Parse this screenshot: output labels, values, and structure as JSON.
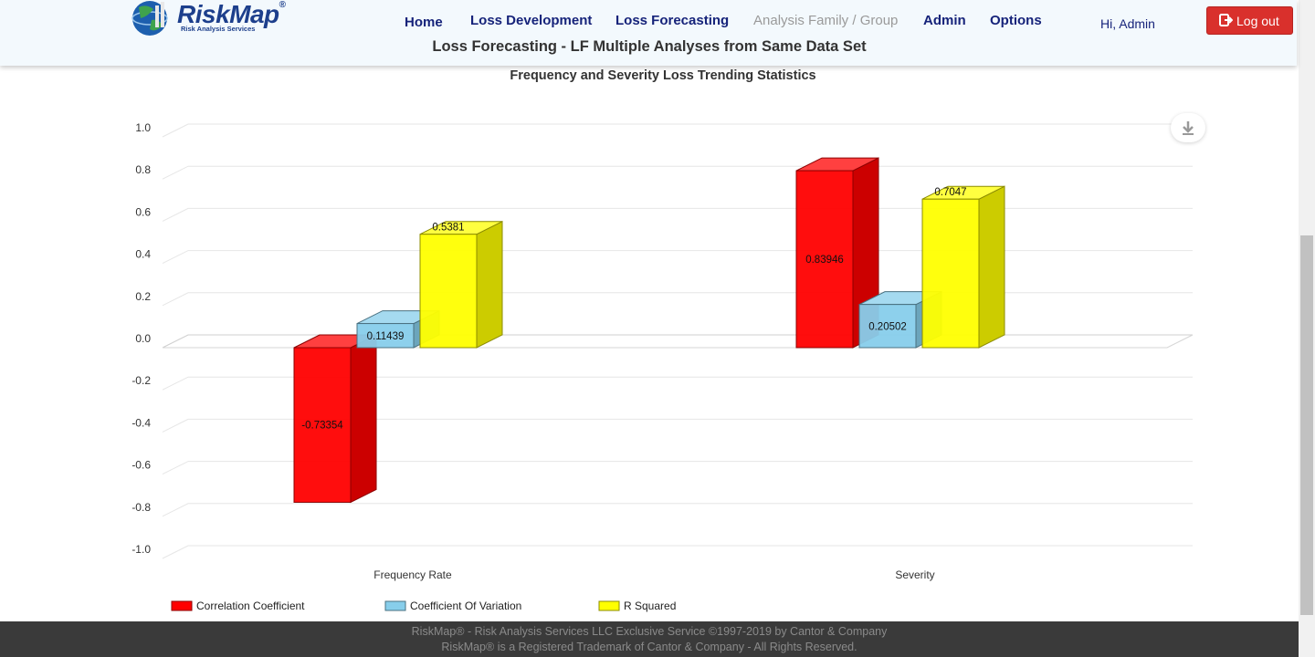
{
  "header": {
    "logo_text": "RiskMap",
    "logo_reg": "®",
    "logo_sub": "Risk Analysis Services",
    "nav": [
      {
        "label": "Home",
        "enabled": true
      },
      {
        "label": "Loss Development",
        "enabled": true
      },
      {
        "label": "Loss Forecasting",
        "enabled": true
      },
      {
        "label": "Analysis Family / Group",
        "enabled": false
      },
      {
        "label": "Admin",
        "enabled": true
      },
      {
        "label": "Options",
        "enabled": true
      }
    ],
    "greeting": "Hi, Admin",
    "logout_label": "Log out",
    "page_title": "Loss Forecasting - LF Multiple Analyses from Same Data Set"
  },
  "colors": {
    "series": [
      "#ff0000",
      "#87ceeb",
      "#ffff00"
    ],
    "logout": "#d9302c",
    "nav": "#16237a"
  },
  "chart_data": {
    "type": "bar",
    "style": "3d-column",
    "title": "Frequency and Severity Loss Trending Statistics",
    "categories": [
      "Frequency Rate",
      "Severity"
    ],
    "series": [
      {
        "name": "Correlation Coefficient",
        "values": [
          -0.73354,
          0.83946
        ],
        "labels": [
          "-0.73354",
          "0.83946"
        ]
      },
      {
        "name": "Coefficient Of Variation",
        "values": [
          0.11439,
          0.20502
        ],
        "labels": [
          "0.11439",
          "0.20502"
        ]
      },
      {
        "name": "R Squared",
        "values": [
          0.5381,
          0.7047
        ],
        "labels": [
          "0.5381",
          "0.7047"
        ]
      }
    ],
    "ylim": [
      -1.0,
      1.0
    ],
    "yticks": [
      "-1.0",
      "-0.8",
      "-0.6",
      "-0.4",
      "-0.2",
      "0.0",
      "0.2",
      "0.4",
      "0.6",
      "0.8",
      "1.0"
    ],
    "grid": true,
    "legend": "bottom-left"
  },
  "footer": {
    "line1": "RiskMap® - Risk Analysis Services LLC Exclusive Service ©1997-2019 by Cantor & Company",
    "line2": "RiskMap® is a Registered Trademark of Cantor & Company - All Rights Reserved."
  }
}
